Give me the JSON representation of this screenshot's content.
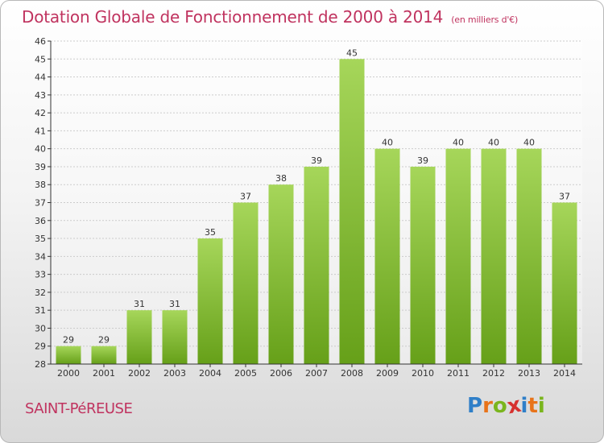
{
  "header": {
    "title": "Dotation Globale de Fonctionnement de 2000 à 2014",
    "subtitle": "(en milliers d'€)"
  },
  "footer": {
    "town": "SAINT-PéREUSE",
    "logo_letters": [
      "P",
      "r",
      "o",
      "x",
      "i",
      "t",
      "i"
    ],
    "logo_colors": [
      "#2f7fc8",
      "#e8731a",
      "#7ab51d",
      "#d6312f",
      "#2f7fc8",
      "#e8731a",
      "#7ab51d"
    ]
  },
  "colors": {
    "bar_light": "#a6d65a",
    "bar_dark": "#66a019",
    "axis": "#333333",
    "grid": "#cccccc",
    "accent": "#c0335f"
  },
  "chart_data": {
    "type": "bar",
    "categories": [
      "2000",
      "2001",
      "2002",
      "2003",
      "2004",
      "2005",
      "2006",
      "2007",
      "2008",
      "2009",
      "2010",
      "2011",
      "2012",
      "2013",
      "2014"
    ],
    "values": [
      29,
      29,
      31,
      31,
      35,
      37,
      38,
      39,
      45,
      40,
      39,
      40,
      40,
      40,
      37
    ],
    "title": "Dotation Globale de Fonctionnement de 2000 à 2014",
    "xlabel": "",
    "ylabel": "",
    "ylim": [
      28,
      46
    ],
    "yticks": [
      28,
      29,
      30,
      31,
      32,
      33,
      34,
      35,
      36,
      37,
      38,
      39,
      40,
      41,
      42,
      43,
      44,
      45,
      46
    ],
    "grid": true,
    "data_labels": true
  }
}
